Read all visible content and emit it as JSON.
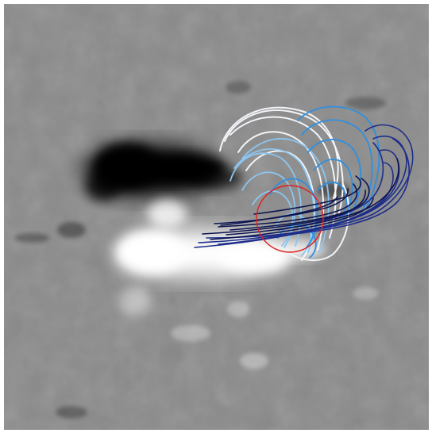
{
  "image": {
    "kind": "solar magnetogram with extrapolated magnetic field lines",
    "background_gray": "#8a8a8a",
    "frame_color": "#ffffff"
  },
  "polarity_regions": [
    {
      "name": "negative-polarity-region",
      "color": "#000000"
    },
    {
      "name": "positive-polarity-region",
      "color": "#ffffff"
    }
  ],
  "field_line_colors": {
    "white": "#f2f4f8",
    "light_blue": "#8cc6f0",
    "medium_blue": "#2f8fe0",
    "dark_blue": "#1d2d8a",
    "navy": "#0d1450"
  },
  "marker": {
    "shape": "circle",
    "color": "#e02020"
  }
}
